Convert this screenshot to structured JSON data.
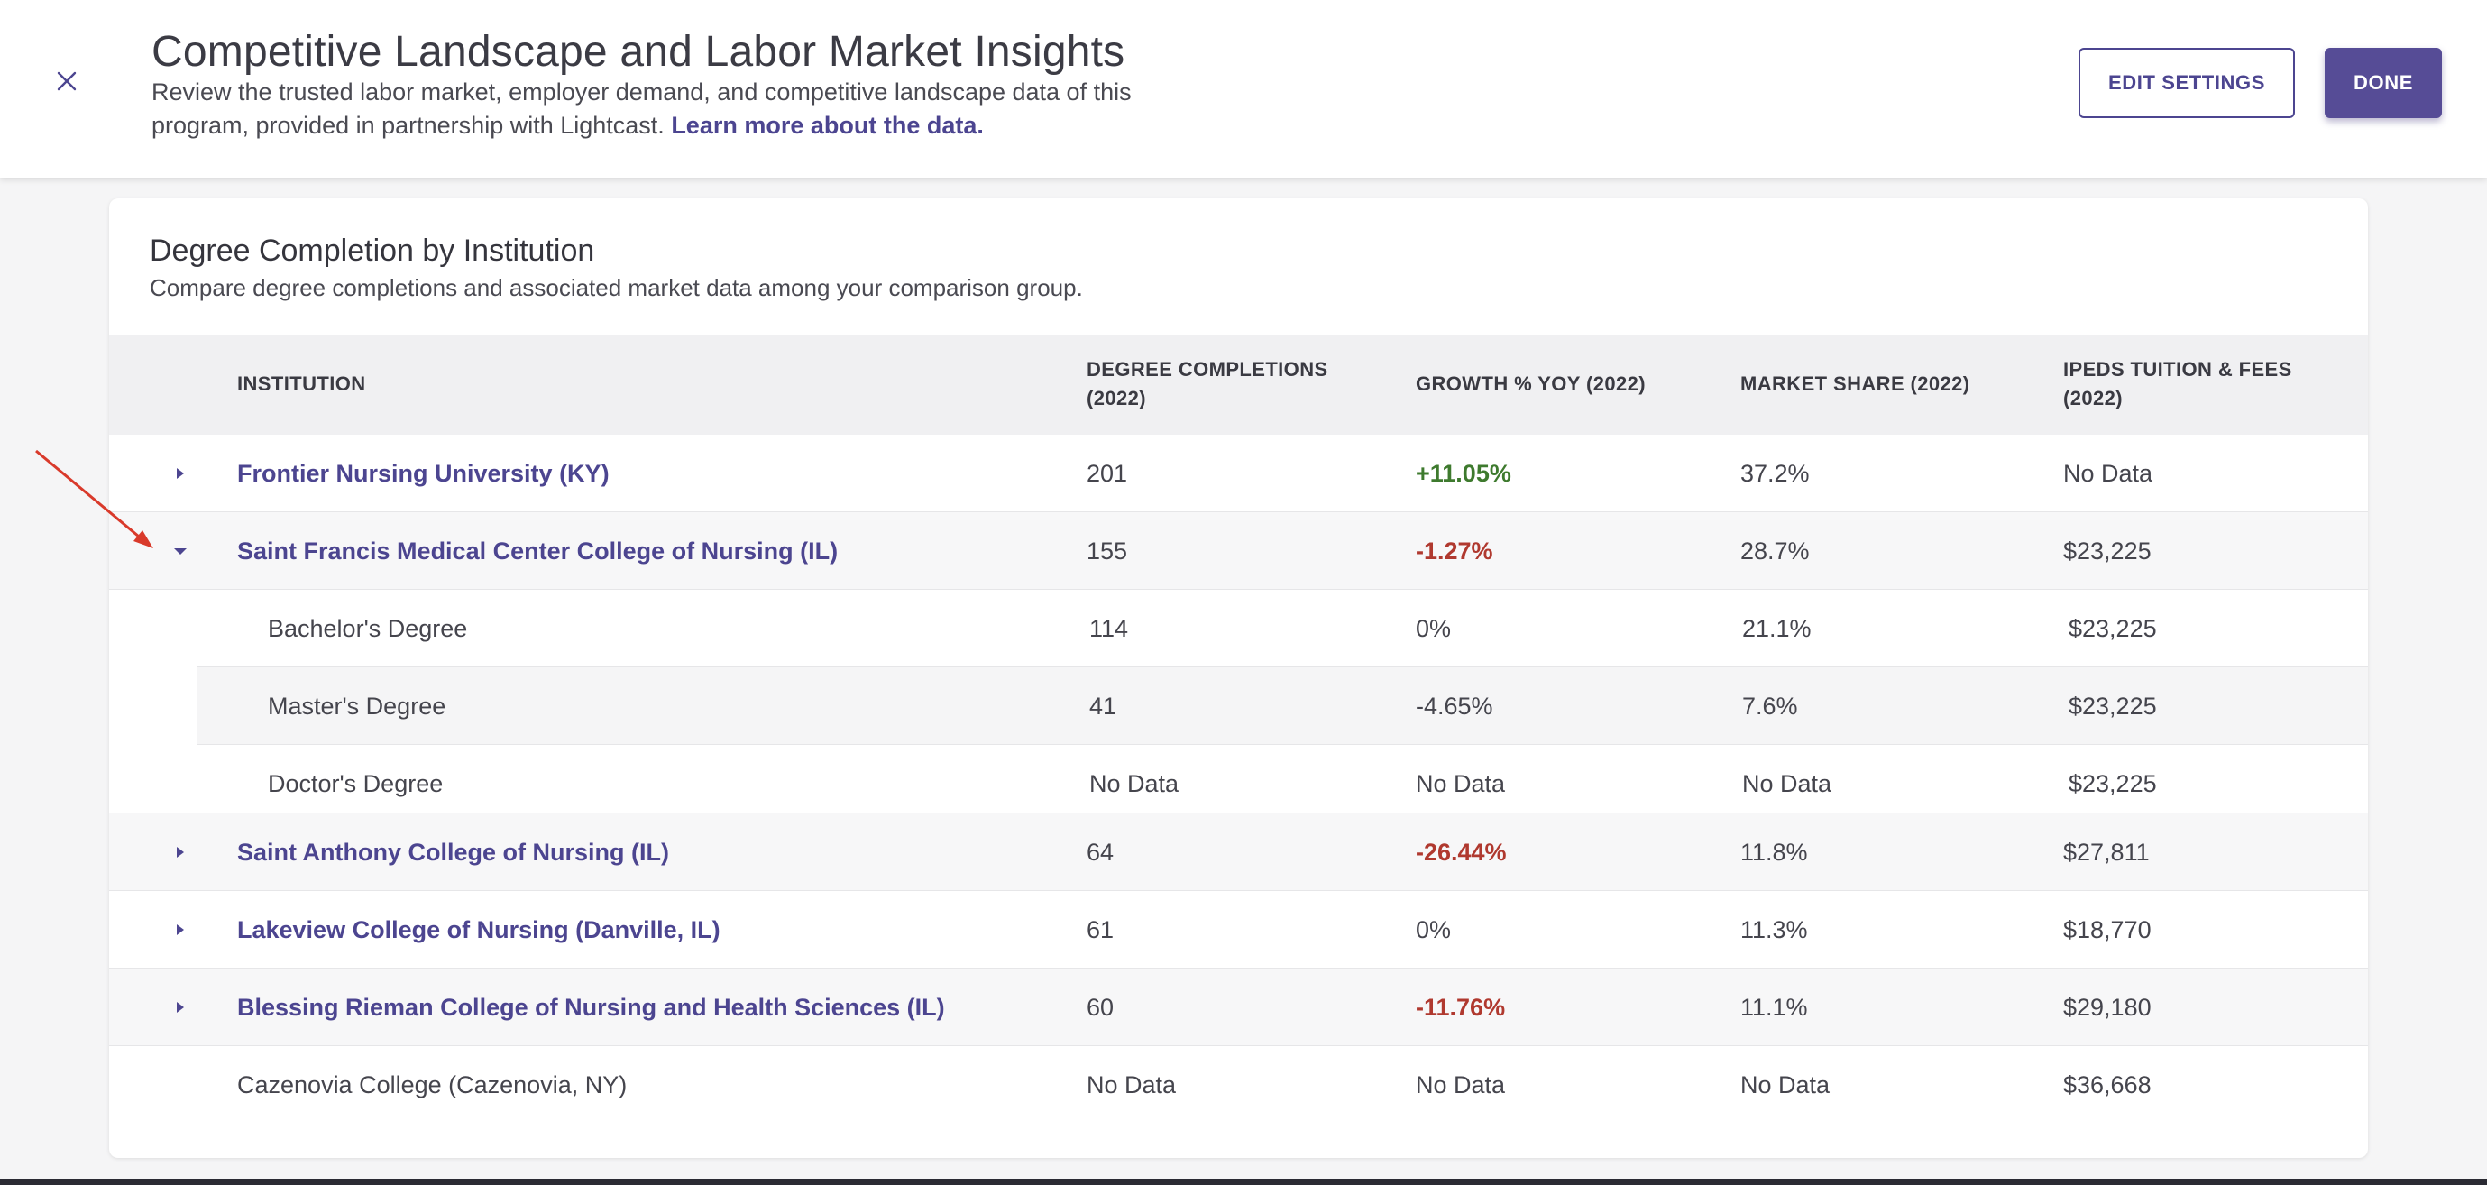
{
  "header": {
    "title": "Competitive Landscape and Labor Market Insights",
    "description": "Review the trusted labor market, employer demand, and competitive landscape data of this program, provided in partnership with Lightcast.",
    "link": "Learn more about the data.",
    "close_icon": "close-icon",
    "edit_label": "EDIT SETTINGS",
    "done_label": "DONE"
  },
  "card": {
    "title": "Degree Completion by Institution",
    "subtitle": "Compare degree completions and associated market data among your comparison group."
  },
  "table": {
    "headers": {
      "institution": "INSTITUTION",
      "completions_1": "DEGREE COMPLETIONS",
      "completions_2": "(2022)",
      "growth": "GROWTH % YOY (2022)",
      "share": "MARKET SHARE (2022)",
      "tuition_1": "IPEDS TUITION & FEES",
      "tuition_2": "(2022)"
    },
    "rows": [
      {
        "name": "Frontier Nursing University (KY)",
        "completions": "201",
        "growth": "+11.05%",
        "share": "37.2%",
        "tuition": "No Data"
      },
      {
        "name": "Saint Francis Medical Center College of Nursing (IL)",
        "completions": "155",
        "growth": "-1.27%",
        "share": "28.7%",
        "tuition": "$23,225"
      },
      {
        "name": "Saint Anthony College of Nursing (IL)",
        "completions": "64",
        "growth": "-26.44%",
        "share": "11.8%",
        "tuition": "$27,811"
      },
      {
        "name": "Lakeview College of Nursing (Danville, IL)",
        "completions": "61",
        "growth": "0%",
        "share": "11.3%",
        "tuition": "$18,770"
      },
      {
        "name": "Blessing Rieman College of Nursing and Health Sciences (IL)",
        "completions": "60",
        "growth": "-11.76%",
        "share": "11.1%",
        "tuition": "$29,180"
      },
      {
        "name": "Cazenovia College (Cazenovia, NY)",
        "completions": "No Data",
        "growth": "No Data",
        "share": "No Data",
        "tuition": "$36,668"
      }
    ],
    "subrows": [
      {
        "name": "Bachelor's Degree",
        "completions": "114",
        "growth": "0%",
        "share": "21.1%",
        "tuition": "$23,225"
      },
      {
        "name": "Master's Degree",
        "completions": "41",
        "growth": "-4.65%",
        "share": "7.6%",
        "tuition": "$23,225"
      },
      {
        "name": "Doctor's Degree",
        "completions": "No Data",
        "growth": "No Data",
        "share": "No Data",
        "tuition": "$23,225"
      }
    ]
  },
  "colors": {
    "accent": "#4c4590",
    "positive": "#3e7a2e",
    "negative": "#b0392f",
    "arrow": "#d93a2b"
  }
}
